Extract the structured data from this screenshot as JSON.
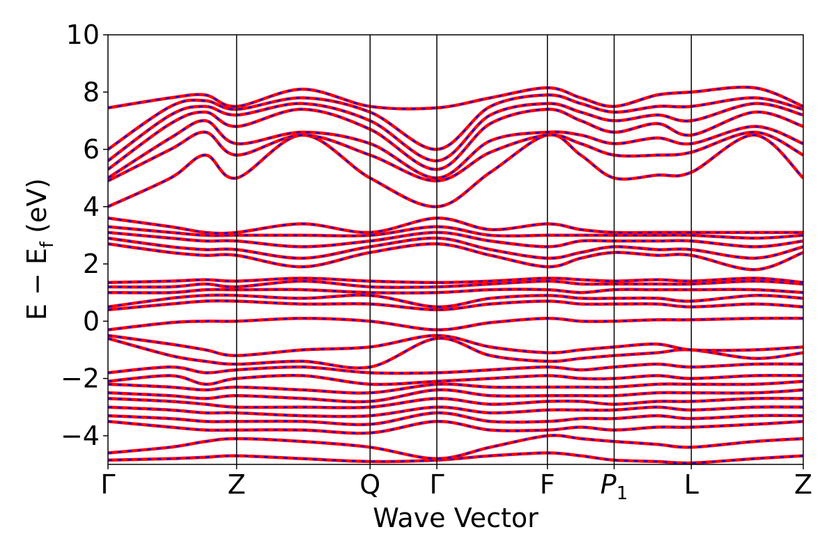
{
  "chart_data": {
    "type": "line",
    "xlabel": "Wave Vector",
    "ylabel": {
      "main": "E − E",
      "sub": "f",
      "unit": " (eV)"
    },
    "ylim": [
      -5,
      10
    ],
    "yticks": [
      -4,
      -2,
      0,
      2,
      4,
      6,
      8,
      10
    ],
    "ytick_labels": [
      "−4",
      "−2",
      "0",
      "2",
      "4",
      "6",
      "8",
      "10"
    ],
    "kpath": [
      {
        "label": "Γ",
        "x": 0.0
      },
      {
        "label": "Z",
        "x": 1.85
      },
      {
        "label": "Q",
        "x": 3.77
      },
      {
        "label": "Γ",
        "x": 4.73
      },
      {
        "label": "F",
        "x": 6.32
      },
      {
        "label": "P",
        "sub": "1",
        "italic": true,
        "x": 7.28
      },
      {
        "label": "L",
        "x": 8.39
      },
      {
        "label": "Z",
        "x": 10.0
      }
    ],
    "colors": {
      "series_a": "#ff0000",
      "series_b": "#0000ff"
    },
    "bands": [
      {
        "x": [
          0,
          0.9,
          1.4,
          1.85,
          2.8,
          3.77,
          4.73,
          5.5,
          6.32,
          6.8,
          7.28,
          7.9,
          8.39,
          9.3,
          10
        ],
        "y": [
          -4.85,
          -4.8,
          -4.75,
          -4.7,
          -4.8,
          -4.9,
          -4.85,
          -4.7,
          -4.6,
          -4.7,
          -4.85,
          -4.9,
          -4.95,
          -4.8,
          -4.7
        ]
      },
      {
        "x": [
          0,
          0.9,
          1.4,
          1.85,
          2.8,
          3.77,
          4.73,
          5.5,
          6.32,
          6.8,
          7.28,
          7.9,
          8.39,
          9.3,
          10
        ],
        "y": [
          -4.6,
          -4.4,
          -4.2,
          -4.1,
          -4.2,
          -4.4,
          -4.8,
          -4.4,
          -4.0,
          -4.1,
          -4.2,
          -4.3,
          -4.4,
          -4.2,
          -4.1
        ]
      },
      {
        "x": [
          0,
          0.9,
          1.4,
          1.85,
          2.8,
          3.77,
          4.73,
          5.5,
          6.32,
          6.8,
          7.28,
          7.9,
          8.39,
          9.3,
          10
        ],
        "y": [
          -3.5,
          -3.7,
          -3.8,
          -3.8,
          -3.8,
          -3.9,
          -3.5,
          -3.8,
          -3.8,
          -3.7,
          -3.8,
          -3.7,
          -3.7,
          -3.6,
          -3.5
        ]
      },
      {
        "x": [
          0,
          0.9,
          1.4,
          1.85,
          2.8,
          3.77,
          4.73,
          5.5,
          6.32,
          6.8,
          7.28,
          7.9,
          8.39,
          9.3,
          10
        ],
        "y": [
          -3.3,
          -3.4,
          -3.5,
          -3.5,
          -3.5,
          -3.6,
          -3.2,
          -3.5,
          -3.5,
          -3.4,
          -3.4,
          -3.3,
          -3.4,
          -3.3,
          -3.3
        ]
      },
      {
        "x": [
          0,
          0.9,
          1.4,
          1.85,
          2.8,
          3.77,
          4.73,
          5.5,
          6.32,
          6.8,
          7.28,
          7.9,
          8.39,
          9.3,
          10
        ],
        "y": [
          -3.0,
          -3.1,
          -3.2,
          -3.2,
          -3.3,
          -3.3,
          -3.0,
          -3.2,
          -3.1,
          -3.1,
          -3.1,
          -3.0,
          -3.1,
          -3.0,
          -3.0
        ]
      },
      {
        "x": [
          0,
          0.9,
          1.4,
          1.85,
          2.8,
          3.77,
          4.73,
          5.5,
          6.32,
          6.8,
          7.28,
          7.9,
          8.39,
          9.3,
          10
        ],
        "y": [
          -2.7,
          -2.8,
          -2.9,
          -3.0,
          -3.0,
          -3.0,
          -2.7,
          -2.9,
          -2.8,
          -2.8,
          -2.9,
          -2.8,
          -2.8,
          -2.7,
          -2.7
        ]
      },
      {
        "x": [
          0,
          0.9,
          1.4,
          1.85,
          2.8,
          3.77,
          4.73,
          5.5,
          6.32,
          6.8,
          7.28,
          7.9,
          8.39,
          9.3,
          10
        ],
        "y": [
          -2.5,
          -2.6,
          -2.7,
          -2.6,
          -2.7,
          -2.8,
          -2.4,
          -2.6,
          -2.6,
          -2.6,
          -2.6,
          -2.5,
          -2.5,
          -2.5,
          -2.4
        ]
      },
      {
        "x": [
          0,
          0.9,
          1.4,
          1.85,
          2.8,
          3.77,
          4.73,
          5.5,
          6.32,
          6.8,
          7.28,
          7.9,
          8.39,
          9.3,
          10
        ],
        "y": [
          -2.2,
          -2.3,
          -2.4,
          -2.3,
          -2.4,
          -2.5,
          -2.2,
          -2.3,
          -2.3,
          -2.3,
          -2.3,
          -2.2,
          -2.2,
          -2.2,
          -2.1
        ]
      },
      {
        "x": [
          0,
          0.9,
          1.4,
          1.85,
          2.8,
          3.77,
          4.73,
          5.5,
          6.32,
          6.8,
          7.28,
          7.9,
          8.39,
          9.3,
          10
        ],
        "y": [
          -2.1,
          -1.9,
          -2.2,
          -2.0,
          -1.9,
          -2.2,
          -2.1,
          -2.0,
          -1.9,
          -2.0,
          -2.0,
          -1.9,
          -2.0,
          -1.9,
          -1.9
        ]
      },
      {
        "x": [
          0,
          0.9,
          1.4,
          1.85,
          2.8,
          3.77,
          4.73,
          5.5,
          6.32,
          6.8,
          7.28,
          7.9,
          8.39,
          9.3,
          10
        ],
        "y": [
          -1.8,
          -1.6,
          -1.8,
          -1.7,
          -1.6,
          -1.8,
          -1.8,
          -1.7,
          -1.6,
          -1.7,
          -1.6,
          -1.5,
          -1.6,
          -1.5,
          -1.5
        ]
      },
      {
        "x": [
          0,
          0.9,
          1.4,
          1.85,
          2.8,
          3.77,
          4.73,
          5.5,
          6.32,
          6.8,
          7.28,
          7.9,
          8.39,
          9.3,
          10
        ],
        "y": [
          -0.6,
          -1.2,
          -1.4,
          -1.5,
          -1.4,
          -1.6,
          -0.6,
          -1.2,
          -1.4,
          -1.3,
          -1.2,
          -1.1,
          -1.0,
          -1.3,
          -1.1
        ]
      },
      {
        "x": [
          0,
          0.9,
          1.4,
          1.85,
          2.8,
          3.77,
          4.73,
          5.5,
          6.32,
          6.8,
          7.28,
          7.9,
          8.39,
          9.3,
          10
        ],
        "y": [
          -0.5,
          -0.8,
          -1.0,
          -1.2,
          -1.0,
          -0.9,
          -0.5,
          -0.9,
          -1.1,
          -1.0,
          -0.9,
          -0.8,
          -1.0,
          -1.0,
          -0.9
        ]
      },
      {
        "x": [
          0,
          0.9,
          1.4,
          1.85,
          2.8,
          3.77,
          4.73,
          5.5,
          6.32,
          6.8,
          7.28,
          7.9,
          8.39,
          9.3,
          10
        ],
        "y": [
          -0.3,
          -0.05,
          0.0,
          0.0,
          0.1,
          0.0,
          -0.3,
          -0.05,
          0.1,
          0.0,
          0.0,
          0.05,
          0.05,
          0.1,
          0.1
        ]
      },
      {
        "x": [
          0,
          0.9,
          1.4,
          1.85,
          2.8,
          3.77,
          4.73,
          5.5,
          6.32,
          6.8,
          7.28,
          7.9,
          8.39,
          9.3,
          10
        ],
        "y": [
          0.4,
          0.6,
          0.7,
          0.7,
          0.6,
          0.6,
          0.4,
          0.6,
          0.7,
          0.6,
          0.6,
          0.6,
          0.5,
          0.6,
          0.5
        ]
      },
      {
        "x": [
          0,
          0.9,
          1.4,
          1.85,
          2.8,
          3.77,
          4.73,
          5.5,
          6.32,
          6.8,
          7.28,
          7.9,
          8.39,
          9.3,
          10
        ],
        "y": [
          0.5,
          0.8,
          0.9,
          0.9,
          0.8,
          0.9,
          0.5,
          0.8,
          0.9,
          0.8,
          0.8,
          0.8,
          0.7,
          0.9,
          0.8
        ]
      },
      {
        "x": [
          0,
          0.9,
          1.4,
          1.85,
          2.8,
          3.77,
          4.73,
          5.5,
          6.32,
          6.8,
          7.28,
          7.9,
          8.39,
          9.3,
          10
        ],
        "y": [
          1.0,
          1.0,
          1.1,
          1.1,
          1.1,
          1.0,
          1.0,
          1.1,
          1.1,
          1.0,
          1.1,
          1.1,
          1.1,
          1.1,
          1.0
        ]
      },
      {
        "x": [
          0,
          0.9,
          1.4,
          1.85,
          2.8,
          3.77,
          4.73,
          5.5,
          6.32,
          6.8,
          7.28,
          7.9,
          8.39,
          9.3,
          10
        ],
        "y": [
          1.2,
          1.2,
          1.3,
          1.2,
          1.4,
          1.2,
          1.2,
          1.3,
          1.4,
          1.3,
          1.3,
          1.3,
          1.3,
          1.4,
          1.3
        ]
      },
      {
        "x": [
          0,
          0.9,
          1.4,
          1.85,
          2.8,
          3.77,
          4.73,
          5.5,
          6.32,
          6.8,
          7.28,
          7.9,
          8.39,
          9.3,
          10
        ],
        "y": [
          1.35,
          1.4,
          1.45,
          1.4,
          1.5,
          1.4,
          1.35,
          1.4,
          1.5,
          1.45,
          1.4,
          1.45,
          1.4,
          1.5,
          1.35
        ]
      },
      {
        "x": [
          0,
          0.9,
          1.4,
          1.85,
          2.8,
          3.77,
          4.73,
          5.5,
          6.32,
          6.8,
          7.28,
          7.9,
          8.39,
          9.3,
          10
        ],
        "y": [
          2.7,
          2.4,
          2.3,
          2.3,
          1.9,
          2.4,
          2.7,
          2.3,
          1.9,
          2.2,
          2.4,
          2.3,
          2.3,
          1.8,
          2.4
        ]
      },
      {
        "x": [
          0,
          0.9,
          1.4,
          1.85,
          2.8,
          3.77,
          4.73,
          5.5,
          6.32,
          6.8,
          7.28,
          7.9,
          8.39,
          9.3,
          10
        ],
        "y": [
          2.9,
          2.6,
          2.5,
          2.5,
          2.2,
          2.6,
          2.9,
          2.5,
          2.2,
          2.4,
          2.6,
          2.5,
          2.5,
          2.2,
          2.6
        ]
      },
      {
        "x": [
          0,
          0.9,
          1.4,
          1.85,
          2.8,
          3.77,
          4.73,
          5.5,
          6.32,
          6.8,
          7.28,
          7.9,
          8.39,
          9.3,
          10
        ],
        "y": [
          3.1,
          2.9,
          2.8,
          2.8,
          2.6,
          2.8,
          3.1,
          2.8,
          2.6,
          2.8,
          2.8,
          2.8,
          2.8,
          2.6,
          2.8
        ]
      },
      {
        "x": [
          0,
          0.9,
          1.4,
          1.85,
          2.8,
          3.77,
          4.73,
          5.5,
          6.32,
          6.8,
          7.28,
          7.9,
          8.39,
          9.3,
          10
        ],
        "y": [
          3.3,
          3.1,
          3.0,
          3.0,
          3.0,
          3.0,
          3.3,
          3.0,
          3.0,
          3.0,
          3.0,
          3.0,
          3.0,
          2.9,
          3.0
        ]
      },
      {
        "x": [
          0,
          0.9,
          1.4,
          1.85,
          2.8,
          3.77,
          4.73,
          5.5,
          6.32,
          6.8,
          7.28,
          7.9,
          8.39,
          9.3,
          10
        ],
        "y": [
          3.6,
          3.3,
          3.1,
          3.1,
          3.4,
          3.1,
          3.6,
          3.2,
          3.4,
          3.2,
          3.1,
          3.1,
          3.1,
          3.1,
          3.1
        ]
      },
      {
        "x": [
          0,
          0.9,
          1.4,
          1.85,
          2.8,
          3.77,
          4.73,
          5.5,
          6.32,
          6.8,
          7.28,
          7.9,
          8.39,
          9.3,
          10
        ],
        "y": [
          4.0,
          5.0,
          5.8,
          5.0,
          6.5,
          5.0,
          4.0,
          5.2,
          6.5,
          5.8,
          5.0,
          5.1,
          5.2,
          6.5,
          5.0
        ]
      },
      {
        "x": [
          0,
          0.9,
          1.4,
          1.85,
          2.8,
          3.77,
          4.73,
          5.5,
          6.32,
          6.8,
          7.28,
          7.9,
          8.39,
          9.3,
          10
        ],
        "y": [
          4.9,
          6.0,
          6.6,
          5.8,
          6.5,
          5.8,
          4.9,
          5.9,
          6.5,
          6.2,
          5.8,
          5.8,
          5.9,
          6.6,
          5.8
        ]
      },
      {
        "x": [
          0,
          0.9,
          1.4,
          1.85,
          2.8,
          3.77,
          4.73,
          5.5,
          6.32,
          6.8,
          7.28,
          7.9,
          8.39,
          9.3,
          10
        ],
        "y": [
          5.0,
          6.4,
          7.0,
          6.2,
          6.6,
          6.2,
          5.0,
          6.3,
          6.6,
          6.5,
          6.2,
          6.4,
          6.2,
          6.8,
          6.2
        ]
      },
      {
        "x": [
          0,
          0.9,
          1.4,
          1.85,
          2.8,
          3.77,
          4.73,
          5.5,
          6.32,
          6.8,
          7.28,
          7.9,
          8.39,
          9.3,
          10
        ],
        "y": [
          5.3,
          6.9,
          7.3,
          6.8,
          7.4,
          6.7,
          5.3,
          6.9,
          7.4,
          7.0,
          6.6,
          6.9,
          6.5,
          7.3,
          6.8
        ]
      },
      {
        "x": [
          0,
          0.9,
          1.4,
          1.85,
          2.8,
          3.77,
          4.73,
          5.5,
          6.32,
          6.8,
          7.28,
          7.9,
          8.39,
          9.3,
          10
        ],
        "y": [
          5.6,
          7.2,
          7.5,
          7.2,
          7.6,
          7.0,
          5.6,
          7.2,
          7.6,
          7.3,
          7.0,
          7.2,
          7.0,
          7.6,
          7.2
        ]
      },
      {
        "x": [
          0,
          0.9,
          1.4,
          1.85,
          2.8,
          3.77,
          4.73,
          5.5,
          6.32,
          6.8,
          7.28,
          7.9,
          8.39,
          9.3,
          10
        ],
        "y": [
          6.0,
          7.5,
          7.7,
          7.4,
          7.8,
          7.3,
          6.0,
          7.5,
          7.9,
          7.6,
          7.3,
          7.5,
          7.5,
          7.8,
          7.4
        ]
      },
      {
        "x": [
          0,
          0.9,
          1.4,
          1.85,
          2.8,
          3.77,
          4.73,
          5.5,
          6.32,
          6.8,
          7.28,
          7.9,
          8.39,
          9.3,
          10
        ],
        "y": [
          7.45,
          7.8,
          7.9,
          7.5,
          8.1,
          7.5,
          7.45,
          7.8,
          8.15,
          7.8,
          7.5,
          7.9,
          8.0,
          8.15,
          7.5
        ]
      }
    ]
  }
}
